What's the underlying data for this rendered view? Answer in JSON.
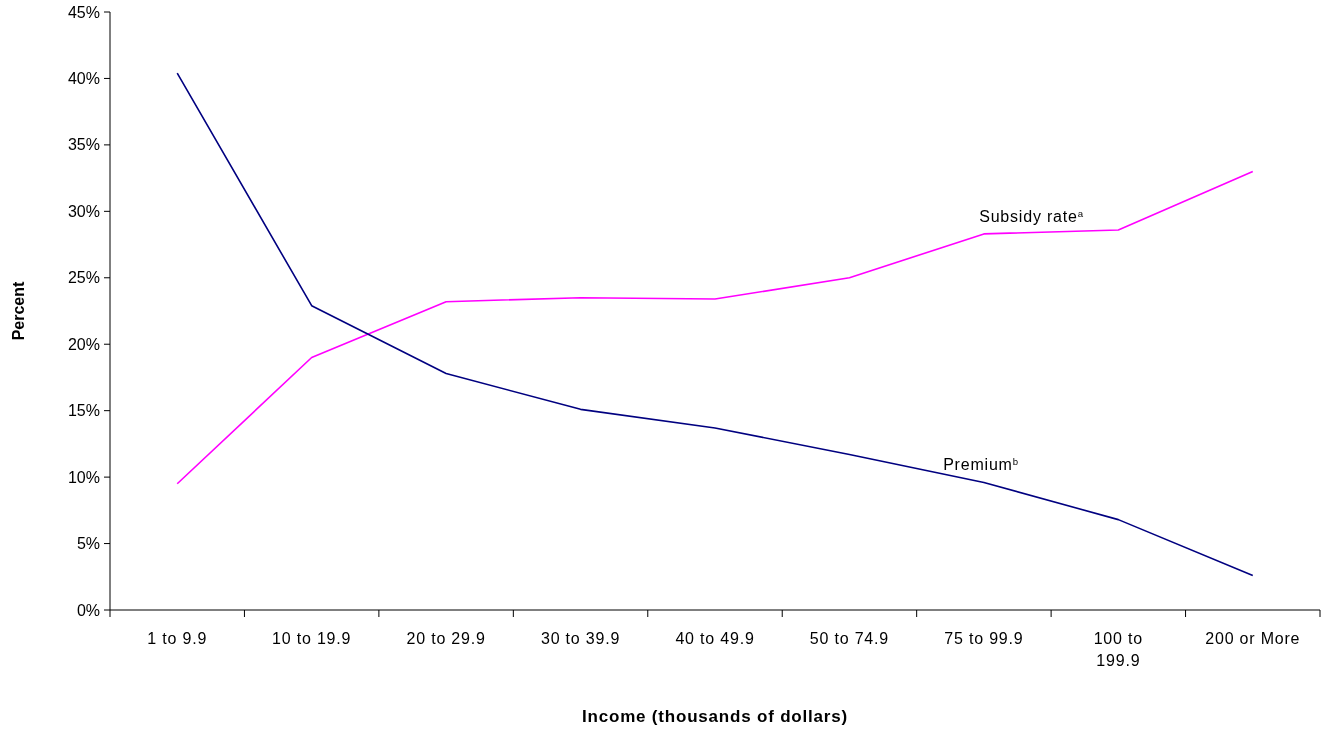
{
  "chart_data": {
    "type": "line",
    "xlabel": "Income (thousands of dollars)",
    "ylabel": "Percent",
    "categories": [
      "1 to 9.9",
      "10 to 19.9",
      "20 to 29.9",
      "30 to 39.9",
      "40 to 49.9",
      "50 to 74.9",
      "75 to 99.9",
      "100 to 199.9",
      "200 or More"
    ],
    "series": [
      {
        "name": "Subsidy rate$^{a}$",
        "color": "#ff00ff",
        "values": [
          9.5,
          19.0,
          23.2,
          23.5,
          23.4,
          25.0,
          28.3,
          28.6,
          33.0
        ]
      },
      {
        "name": "Premium$^{b}$",
        "color": "#000080",
        "values": [
          40.4,
          22.9,
          17.8,
          15.1,
          13.7,
          11.7,
          9.6,
          6.8,
          2.6
        ]
      }
    ],
    "ylim": [
      0,
      45
    ],
    "yticks": [
      {
        "value": 0,
        "label": "0%"
      },
      {
        "value": 5,
        "label": "5%"
      },
      {
        "value": 10,
        "label": "10%"
      },
      {
        "value": 15,
        "label": "15%"
      },
      {
        "value": 20,
        "label": "20%"
      },
      {
        "value": 25,
        "label": "25%"
      },
      {
        "value": 30,
        "label": "30%"
      },
      {
        "value": 35,
        "label": "35%"
      },
      {
        "value": 40,
        "label": "40%"
      },
      {
        "value": 45,
        "label": "45%"
      }
    ],
    "grid": false,
    "marker": "none",
    "line_style": "solid"
  }
}
